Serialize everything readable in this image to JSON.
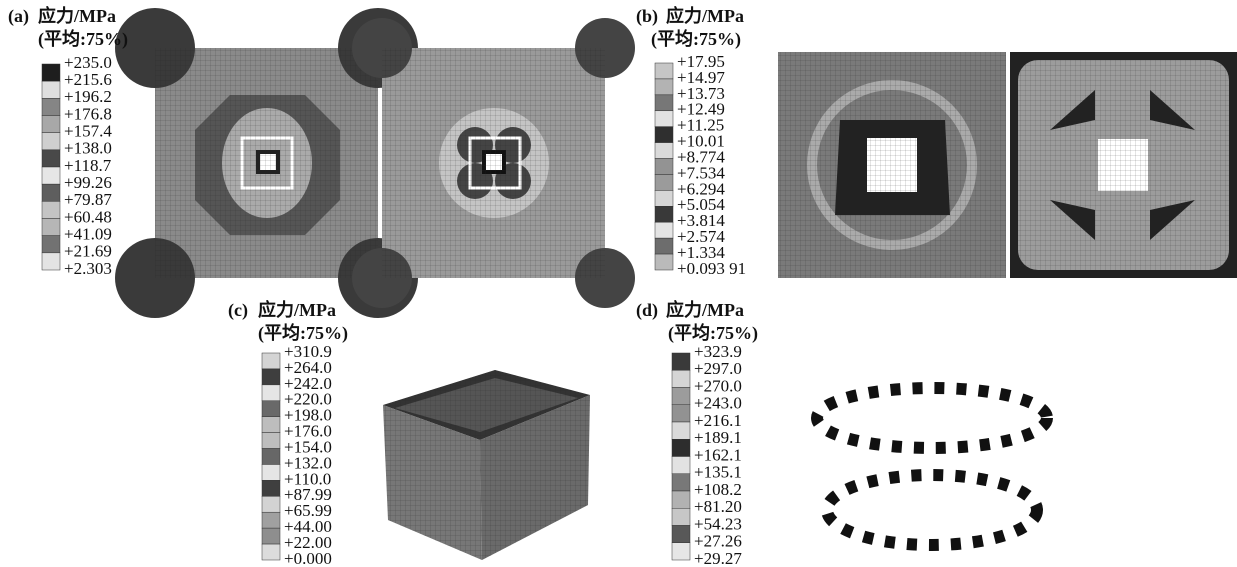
{
  "panels": [
    {
      "label": "(a)",
      "title": "应力/MPa",
      "subtitle": "(平均:75%)",
      "legend": [
        "+235.0",
        "+215.6",
        "+196.2",
        "+176.8",
        "+157.4",
        "+138.0",
        "+118.7",
        "+99.26",
        "+79.87",
        "+60.48",
        "+41.09",
        "+21.69",
        "+2.303"
      ]
    },
    {
      "label": "(b)",
      "title": "应力/MPa",
      "subtitle": "(平均:75%)",
      "legend": [
        "+17.95",
        "+14.97",
        "+13.73",
        "+12.49",
        "+11.25",
        "+10.01",
        "+8.774",
        "+7.534",
        "+6.294",
        "+5.054",
        "+3.814",
        "+2.574",
        "+1.334",
        "+0.093 91"
      ]
    },
    {
      "label": "(c)",
      "title": "应力/MPa",
      "subtitle": "(平均:75%)",
      "legend": [
        "+310.9",
        "+264.0",
        "+242.0",
        "+220.0",
        "+198.0",
        "+176.0",
        "+154.0",
        "+132.0",
        "+110.0",
        "+87.99",
        "+65.99",
        "+44.00",
        "+22.00",
        "+0.000"
      ]
    },
    {
      "label": "(d)",
      "title": "应力/MPa",
      "subtitle": "(平均:75%)",
      "legend": [
        "+323.9",
        "+297.0",
        "+270.0",
        "+243.0",
        "+216.1",
        "+189.1",
        "+162.1",
        "+135.1",
        "+108.2",
        "+81.20",
        "+54.23",
        "+27.26",
        "+29.27"
      ]
    }
  ]
}
